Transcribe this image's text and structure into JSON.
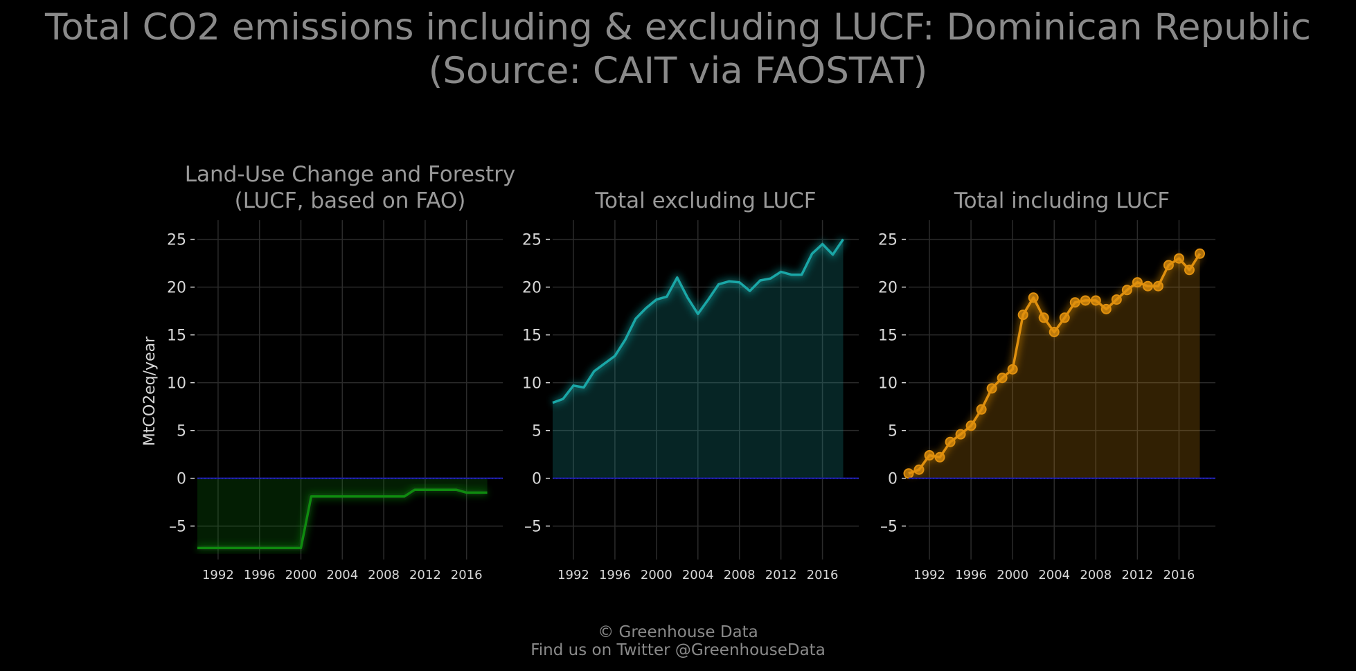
{
  "title_lines": [
    "Total CO2 emissions including & excluding LUCF: Dominican Republic",
    "(Source: CAIT via FAOSTAT)"
  ],
  "credits": {
    "line1": "© Greenhouse Data",
    "line2": "Find us on Twitter @GreenhouseData"
  },
  "colors": {
    "lucf": "#0f8a0f",
    "excl": "#1aa7a7",
    "incl": "#e0900e",
    "zero_line": "#1a1aa8",
    "grid": "#2b2b2b"
  },
  "chart_data": {
    "type": "area",
    "ylabel": "MtCO2eq/year",
    "ylim": [
      -8.5,
      27
    ],
    "yticks": [
      25,
      20,
      15,
      10,
      5,
      0,
      -5
    ],
    "ytick_labels": [
      "25",
      "20",
      "15",
      "10",
      "5",
      "0",
      "–5"
    ],
    "xlim": [
      1990,
      2019.5
    ],
    "xticks": [
      1992,
      1996,
      2000,
      2004,
      2008,
      2012,
      2016
    ],
    "xtick_labels": [
      "1992",
      "1996",
      "2000",
      "2004",
      "2008",
      "2012",
      "2016"
    ],
    "grid": true,
    "panels": [
      {
        "name": "lucf",
        "title_lines": [
          "Land-Use Change and Forestry",
          "(LUCF, based on FAO)"
        ],
        "markers": false,
        "x": [
          1990,
          1991,
          1992,
          1993,
          1994,
          1995,
          1996,
          1997,
          1998,
          1999,
          2000,
          2001,
          2002,
          2003,
          2004,
          2005,
          2006,
          2007,
          2008,
          2009,
          2010,
          2011,
          2012,
          2013,
          2014,
          2015,
          2016,
          2017,
          2018
        ],
        "y": [
          -7.3,
          -7.3,
          -7.3,
          -7.3,
          -7.3,
          -7.3,
          -7.3,
          -7.3,
          -7.3,
          -7.3,
          -7.3,
          -1.9,
          -1.9,
          -1.9,
          -1.9,
          -1.9,
          -1.9,
          -1.9,
          -1.9,
          -1.9,
          -1.9,
          -1.2,
          -1.2,
          -1.2,
          -1.2,
          -1.2,
          -1.5,
          -1.5,
          -1.5
        ]
      },
      {
        "name": "excl",
        "title_lines": [
          "Total excluding LUCF"
        ],
        "markers": false,
        "x": [
          1990,
          1991,
          1992,
          1993,
          1994,
          1995,
          1996,
          1997,
          1998,
          1999,
          2000,
          2001,
          2002,
          2003,
          2004,
          2005,
          2006,
          2007,
          2008,
          2009,
          2010,
          2011,
          2012,
          2013,
          2014,
          2015,
          2016,
          2017,
          2018
        ],
        "y": [
          7.9,
          8.3,
          9.7,
          9.5,
          11.2,
          12.0,
          12.8,
          14.5,
          16.7,
          17.8,
          18.7,
          19.0,
          21.0,
          18.9,
          17.2,
          18.7,
          20.3,
          20.6,
          20.5,
          19.6,
          20.7,
          20.9,
          21.6,
          21.3,
          21.3,
          23.5,
          24.5,
          23.4,
          25.0
        ]
      },
      {
        "name": "incl",
        "title_lines": [
          "Total including LUCF"
        ],
        "markers": true,
        "x": [
          1990,
          1991,
          1992,
          1993,
          1994,
          1995,
          1996,
          1997,
          1998,
          1999,
          2000,
          2001,
          2002,
          2003,
          2004,
          2005,
          2006,
          2007,
          2008,
          2009,
          2010,
          2011,
          2012,
          2013,
          2014,
          2015,
          2016,
          2017,
          2018
        ],
        "y": [
          0.5,
          0.9,
          2.4,
          2.2,
          3.8,
          4.6,
          5.5,
          7.2,
          9.4,
          10.5,
          11.4,
          17.1,
          18.9,
          16.8,
          15.3,
          16.8,
          18.4,
          18.6,
          18.6,
          17.7,
          18.7,
          19.7,
          20.5,
          20.1,
          20.1,
          22.3,
          23.0,
          21.8,
          23.5
        ]
      }
    ]
  }
}
